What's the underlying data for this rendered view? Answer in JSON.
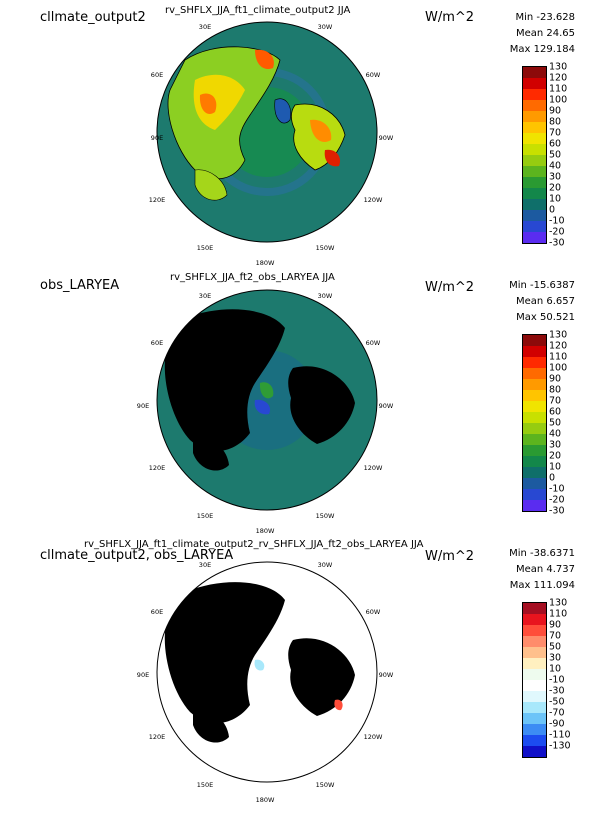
{
  "panels": [
    {
      "case_label": "cllmate_output2",
      "title": "rv_SHFLX_JJA_ft1_climate_output2  JJA",
      "units": "W/m^2",
      "stats": {
        "min": "Min -23.628",
        "mean": "Mean 24.65",
        "max": "Max 129.184"
      },
      "longitude_labels": [
        "30E",
        "30W",
        "60E",
        "60W",
        "90E",
        "90W",
        "120E",
        "120W",
        "150E",
        "150W",
        "180W"
      ],
      "colorbar": {
        "labels": [
          "130",
          "120",
          "110",
          "100",
          "90",
          "80",
          "70",
          "60",
          "50",
          "40",
          "30",
          "20",
          "10",
          "0",
          "-10",
          "-20",
          "-30"
        ],
        "colors": [
          "#8c0a0a",
          "#d10000",
          "#ff2a00",
          "#ff6a00",
          "#ff9a00",
          "#ffc400",
          "#f0e400",
          "#c8e000",
          "#96cc10",
          "#5cb41e",
          "#2a9a32",
          "#13874a",
          "#0f6f6a",
          "#1c5aa0",
          "#2848d2",
          "#5a2cf0"
        ]
      }
    },
    {
      "case_label": "obs_LARYEA",
      "title": "rv_SHFLX_JJA_ft2_obs_LARYEA  JJA",
      "units": "W/m^2",
      "stats": {
        "min": "Min -15.6387",
        "mean": "Mean 6.657",
        "max": "Max 50.521"
      },
      "longitude_labels": [
        "30E",
        "30W",
        "60E",
        "60W",
        "90E",
        "90W",
        "120E",
        "120W",
        "150E",
        "150W",
        "180W"
      ],
      "colorbar": {
        "labels": [
          "130",
          "120",
          "110",
          "100",
          "90",
          "80",
          "70",
          "60",
          "50",
          "40",
          "30",
          "20",
          "10",
          "0",
          "-10",
          "-20",
          "-30"
        ],
        "colors": [
          "#8c0a0a",
          "#d10000",
          "#ff2a00",
          "#ff6a00",
          "#ff9a00",
          "#ffc400",
          "#f0e400",
          "#c8e000",
          "#96cc10",
          "#5cb41e",
          "#2a9a32",
          "#13874a",
          "#0f6f6a",
          "#1c5aa0",
          "#2848d2",
          "#5a2cf0"
        ]
      }
    },
    {
      "case_label": "cllmate_output2, obs_LARYEA",
      "title": "rv_SHFLX_JJA_ft1_climate_output2_rv_SHFLX_JJA_ft2_obs_LARYEA  JJA",
      "units": "W/m^2",
      "stats": {
        "min": "Min -38.6371",
        "mean": "Mean 4.737",
        "max": "Max 111.094"
      },
      "longitude_labels": [
        "30E",
        "30W",
        "60E",
        "60W",
        "90E",
        "90W",
        "120E",
        "120W",
        "150E",
        "150W",
        "180W"
      ],
      "colorbar": {
        "labels": [
          "130",
          "110",
          "90",
          "70",
          "50",
          "30",
          "10",
          "-10",
          "-30",
          "-50",
          "-70",
          "-90",
          "-110",
          "-130"
        ],
        "colors": [
          "#a50f22",
          "#e8141e",
          "#ff4d3a",
          "#ff8c6b",
          "#ffc08c",
          "#fff0c0",
          "#eefbee",
          "#ffffff",
          "#e0f8fd",
          "#a8e8fb",
          "#6cc4f8",
          "#3c8cf4",
          "#1c4cf0",
          "#1010c8"
        ]
      }
    }
  ]
}
